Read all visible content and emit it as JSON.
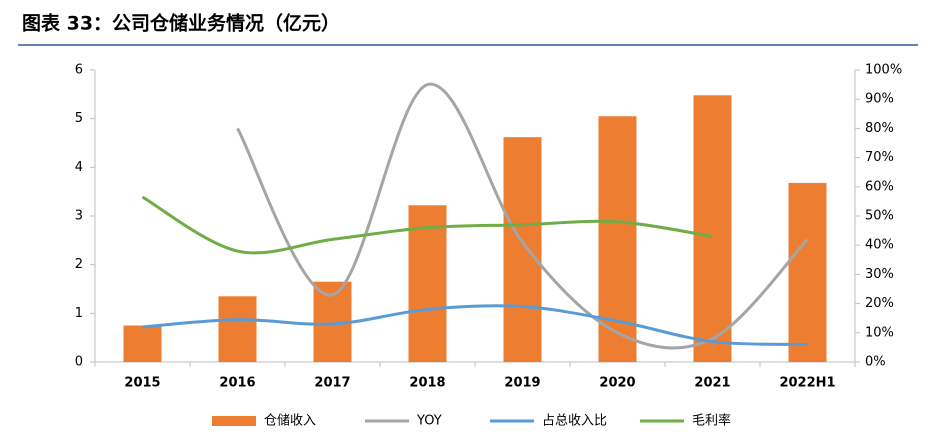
{
  "chart_data": {
    "type": "bar",
    "title": "图表 33：公司仓储业务情况（亿元）",
    "categories": [
      "2015",
      "2016",
      "2017",
      "2018",
      "2019",
      "2020",
      "2021",
      "2022H1"
    ],
    "series": [
      {
        "name": "仓储收入",
        "type": "bar",
        "axis": "y",
        "color": "#ed7d31",
        "values": [
          0.75,
          1.35,
          1.65,
          3.22,
          4.62,
          5.05,
          5.48,
          3.68
        ]
      },
      {
        "name": "YOY",
        "type": "line",
        "axis": "y2",
        "color": "#a5a5a5",
        "values": [
          null,
          80,
          23,
          95,
          41,
          10,
          8,
          42
        ]
      },
      {
        "name": "占总收入比",
        "type": "line",
        "axis": "y2",
        "color": "#5b9bd5",
        "values": [
          12,
          14.5,
          13,
          18,
          19,
          14,
          7,
          6
        ]
      },
      {
        "name": "毛利率",
        "type": "line",
        "axis": "y2",
        "color": "#70ad47",
        "values": [
          56.5,
          38,
          42,
          46,
          47,
          48,
          43,
          null
        ]
      }
    ],
    "ylim": [
      0,
      6
    ],
    "yticks": [
      0,
      1,
      2,
      3,
      4,
      5,
      6
    ],
    "y2lim": [
      0,
      100
    ],
    "y2ticks": [
      {
        "value": 0,
        "label": "0%"
      },
      {
        "value": 10,
        "label": "10%"
      },
      {
        "value": 20,
        "label": "20%"
      },
      {
        "value": 30,
        "label": "30%"
      },
      {
        "value": 40,
        "label": "40%"
      },
      {
        "value": 50,
        "label": "50%"
      },
      {
        "value": 60,
        "label": "60%"
      },
      {
        "value": 70,
        "label": "70%"
      },
      {
        "value": 80,
        "label": "80%"
      },
      {
        "value": 90,
        "label": "90%"
      },
      {
        "value": 100,
        "label": "100%"
      }
    ],
    "legend": "bottom"
  }
}
